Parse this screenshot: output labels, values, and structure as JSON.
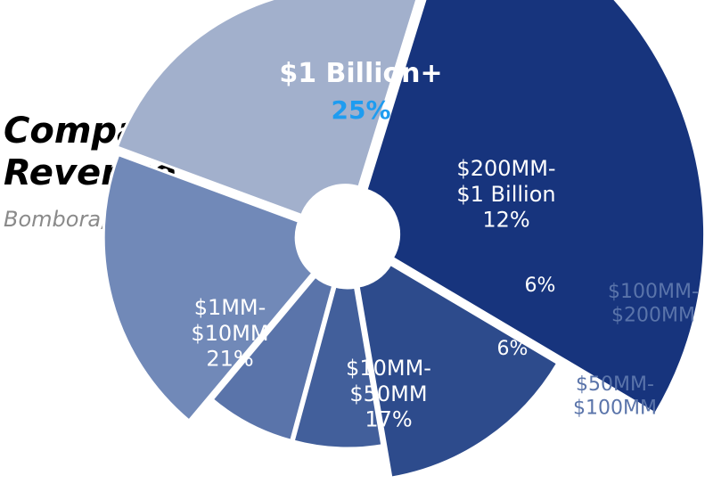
{
  "chart_data": {
    "type": "pie",
    "title": "Company Revenue",
    "title_lines": [
      "Company",
      "Revenue"
    ],
    "subtitle": "Bombora, July 2024",
    "slices": [
      {
        "label_lines": [
          "$1 Billion+"
        ],
        "value": 25,
        "value_label": "25%",
        "color": "#17347d",
        "value_color": "#1e9cf0"
      },
      {
        "label_lines": [
          "$200MM-",
          "$1 Billion"
        ],
        "value": 12,
        "value_label": "12%",
        "color": "#2d4b8c"
      },
      {
        "label_lines": [
          "$100MM-",
          "$200MM"
        ],
        "value": 6,
        "value_label": "6%",
        "color": "#425f9b",
        "label_outside": true
      },
      {
        "label_lines": [
          "$50MM-",
          "$100MM"
        ],
        "value": 6,
        "value_label": "6%",
        "color": "#5a74aa",
        "label_outside": true
      },
      {
        "label_lines": [
          "$10MM-",
          "$50MM"
        ],
        "value": 17,
        "value_label": "17%",
        "color": "#7189b8"
      },
      {
        "label_lines": [
          "$1MM-",
          "$10MM"
        ],
        "value": 21,
        "value_label": "21%",
        "color": "#a2b0cc"
      }
    ]
  }
}
